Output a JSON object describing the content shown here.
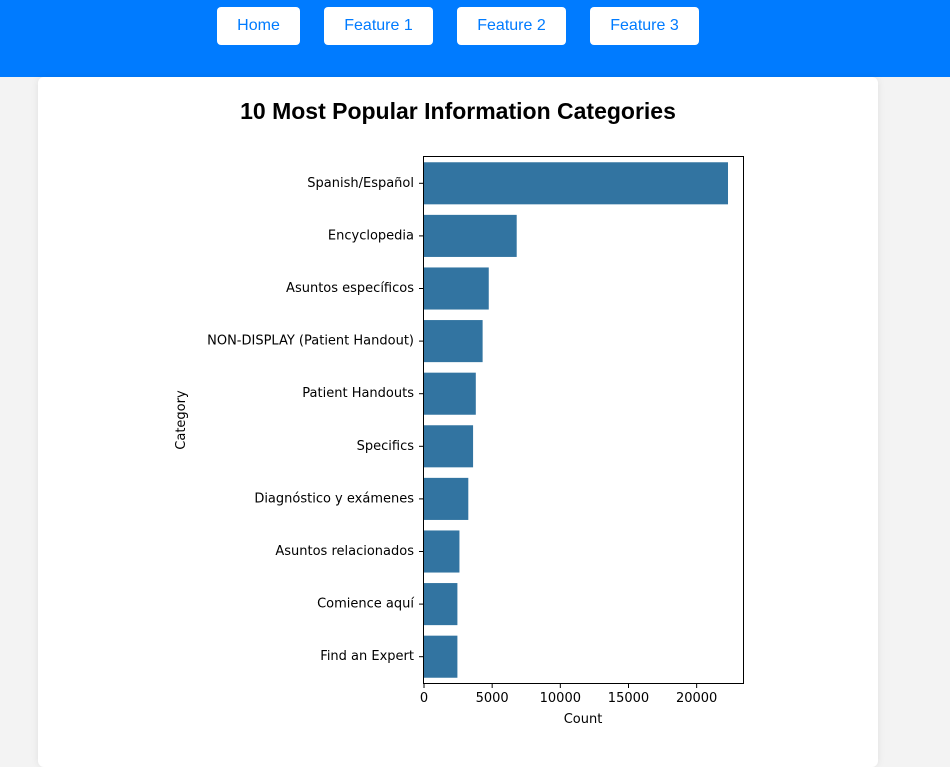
{
  "nav": {
    "items": [
      {
        "label": "Home"
      },
      {
        "label": "Feature 1"
      },
      {
        "label": "Feature 2"
      },
      {
        "label": "Feature 3"
      }
    ]
  },
  "page": {
    "title": "10 Most Popular Information Categories"
  },
  "colors": {
    "header": "#007bff",
    "bar": "#3274a1",
    "page_bg": "#f3f3f3"
  },
  "chart_data": {
    "type": "bar",
    "orientation": "horizontal",
    "categories": [
      "Spanish/Español",
      "Encyclopedia",
      "Asuntos específicos",
      "NON-DISPLAY (Patient Handout)",
      "Patient Handouts",
      "Specifics",
      "Diagnóstico y exámenes",
      "Asuntos relacionados",
      "Comience aquí",
      "Find an Expert"
    ],
    "values": [
      22300,
      6800,
      4750,
      4300,
      3800,
      3600,
      3250,
      2600,
      2450,
      2450
    ],
    "xlabel": "Count",
    "ylabel": "Category",
    "xlim": [
      0,
      23400
    ],
    "xticks": [
      0,
      5000,
      10000,
      15000,
      20000
    ],
    "grid": false
  }
}
